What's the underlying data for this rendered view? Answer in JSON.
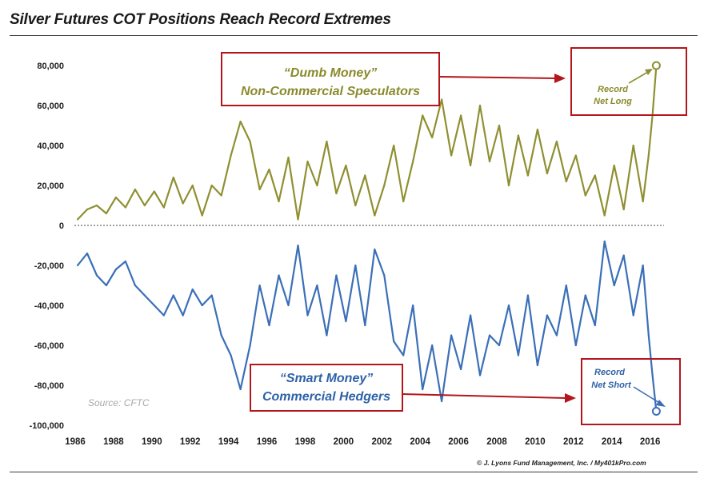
{
  "title": "Silver Futures COT Positions Reach Record Extremes",
  "source": "Source: CFTC",
  "credit": "© J. Lyons Fund Management, Inc. / My401kPro.com",
  "colors": {
    "speculators": "#8f8f32",
    "hedgers": "#3a6fb7",
    "annotation_box": "#b3161c",
    "arrow": "#b3161c",
    "zero_line": "#6a6a6a"
  },
  "annotations": {
    "speculators_box_line1": "“Dumb Money”",
    "speculators_box_line2": "Non-Commercial Speculators",
    "hedgers_box_line1": "“Smart Money”",
    "hedgers_box_line2": "Commercial Hedgers",
    "record_long_line1": "Record",
    "record_long_line2": "Net Long",
    "record_short_line1": "Record",
    "record_short_line2": "Net Short"
  },
  "chart_data": {
    "type": "line",
    "title": "Silver Futures COT Positions Reach Record Extremes",
    "xlabel": "",
    "ylabel": "",
    "xlim": [
      1986,
      2016.6
    ],
    "ylim": [
      -100000,
      80000
    ],
    "grid": false,
    "legend": "none",
    "x_ticks": [
      "1986",
      "1988",
      "1990",
      "1992",
      "1994",
      "1996",
      "1998",
      "2000",
      "2002",
      "2004",
      "2006",
      "2008",
      "2010",
      "2012",
      "2014",
      "2016"
    ],
    "y_ticks": [
      "80,000",
      "60,000",
      "40,000",
      "20,000",
      "0",
      "-20,000",
      "-40,000",
      "-60,000",
      "-80,000",
      "-100,000"
    ],
    "series": [
      {
        "x": [
          1986.0,
          1986.5,
          1987.0,
          1987.5,
          1988.0,
          1988.5,
          1989.0,
          1989.5,
          1990.0,
          1990.5,
          1991.0,
          1991.5,
          1992.0,
          1992.5,
          1993.0,
          1993.5,
          1994.0,
          1994.5,
          1995.0,
          1995.5,
          1996.0,
          1996.5,
          1997.0,
          1997.5,
          1998.0,
          1998.5,
          1999.0,
          1999.5,
          2000.0,
          2000.5,
          2001.0,
          2001.5,
          2002.0,
          2002.5,
          2003.0,
          2003.5,
          2004.0,
          2004.5,
          2005.0,
          2005.5,
          2006.0,
          2006.5,
          2007.0,
          2007.5,
          2008.0,
          2008.5,
          2009.0,
          2009.5,
          2010.0,
          2010.5,
          2011.0,
          2011.5,
          2012.0,
          2012.5,
          2013.0,
          2013.5,
          2014.0,
          2014.5,
          2015.0,
          2015.5,
          2015.8,
          2016.0,
          2016.2
        ],
        "values": [
          3000,
          8000,
          10000,
          6000,
          14000,
          9000,
          18000,
          10000,
          17000,
          9000,
          24000,
          11000,
          20000,
          5000,
          20000,
          15000,
          35000,
          52000,
          42000,
          18000,
          28000,
          12000,
          34000,
          3000,
          32000,
          20000,
          42000,
          16000,
          30000,
          10000,
          25000,
          5000,
          20000,
          40000,
          12000,
          32000,
          55000,
          44000,
          63000,
          35000,
          55000,
          30000,
          60000,
          32000,
          50000,
          20000,
          45000,
          25000,
          48000,
          26000,
          42000,
          22000,
          35000,
          15000,
          25000,
          5000,
          30000,
          8000,
          40000,
          12000,
          35000,
          55000,
          80000
        ]
      },
      {
        "x": [
          1986.0,
          1986.5,
          1987.0,
          1987.5,
          1988.0,
          1988.5,
          1989.0,
          1989.5,
          1990.0,
          1990.5,
          1991.0,
          1991.5,
          1992.0,
          1992.5,
          1993.0,
          1993.5,
          1994.0,
          1994.5,
          1995.0,
          1995.5,
          1996.0,
          1996.5,
          1997.0,
          1997.5,
          1998.0,
          1998.5,
          1999.0,
          1999.5,
          2000.0,
          2000.5,
          2001.0,
          2001.5,
          2002.0,
          2002.5,
          2003.0,
          2003.5,
          2004.0,
          2004.5,
          2005.0,
          2005.5,
          2006.0,
          2006.5,
          2007.0,
          2007.5,
          2008.0,
          2008.5,
          2009.0,
          2009.5,
          2010.0,
          2010.5,
          2011.0,
          2011.5,
          2012.0,
          2012.5,
          2013.0,
          2013.5,
          2014.0,
          2014.5,
          2015.0,
          2015.5,
          2015.8,
          2016.0,
          2016.2
        ],
        "values": [
          -20000,
          -14000,
          -25000,
          -30000,
          -22000,
          -18000,
          -30000,
          -35000,
          -40000,
          -45000,
          -35000,
          -45000,
          -32000,
          -40000,
          -35000,
          -55000,
          -65000,
          -82000,
          -60000,
          -30000,
          -50000,
          -25000,
          -40000,
          -10000,
          -45000,
          -30000,
          -55000,
          -25000,
          -48000,
          -20000,
          -50000,
          -12000,
          -25000,
          -58000,
          -65000,
          -40000,
          -82000,
          -60000,
          -88000,
          -55000,
          -72000,
          -45000,
          -75000,
          -55000,
          -60000,
          -40000,
          -65000,
          -35000,
          -70000,
          -45000,
          -55000,
          -30000,
          -60000,
          -35000,
          -50000,
          -8000,
          -30000,
          -15000,
          -45000,
          -20000,
          -55000,
          -75000,
          -93000
        ]
      }
    ]
  }
}
